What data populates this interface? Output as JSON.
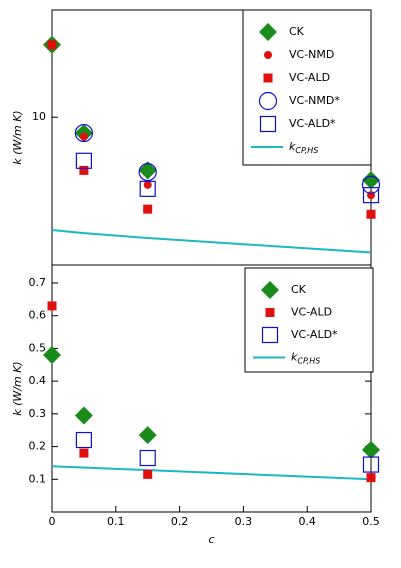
{
  "chart_data": [
    {
      "type": "scatter",
      "ylabel": "k (W/m K)",
      "ylog": true,
      "xlim": [
        0,
        0.5
      ],
      "ylim": [
        2.2,
        30
      ],
      "yticks": [
        10
      ],
      "legend": "upper right",
      "series": [
        {
          "name": "CK",
          "marker": "diamond",
          "color": "#1a8a1a",
          "x": [
            0,
            0.05,
            0.15,
            0.5
          ],
          "values": [
            21,
            8.5,
            5.8,
            5.25
          ]
        },
        {
          "name": "VC-NMD",
          "marker": "dot",
          "color": "#e01010",
          "x": [
            0,
            0.05,
            0.15,
            0.5
          ],
          "values": [
            21,
            8.2,
            5.0,
            4.5
          ]
        },
        {
          "name": "VC-ALD",
          "marker": "square",
          "color": "#e01010",
          "x": [
            0,
            0.05,
            0.15,
            0.5
          ],
          "values": [
            21,
            5.8,
            3.9,
            3.7
          ]
        },
        {
          "name": "VC-NMD*",
          "marker": "ring",
          "color": "#1010d0",
          "x": [
            0.05,
            0.15,
            0.5
          ],
          "values": [
            8.5,
            5.7,
            5.0
          ]
        },
        {
          "name": "VC-ALD*",
          "marker": "box",
          "color": "#1010d0",
          "x": [
            0.05,
            0.15,
            0.5
          ],
          "values": [
            6.4,
            4.8,
            4.5
          ]
        },
        {
          "name": "k",
          "subscript": "CP,HS",
          "marker": "line",
          "color": "#1bb8c0",
          "x": [
            0,
            0.05,
            0.15,
            0.5
          ],
          "values": [
            3.15,
            3.05,
            2.9,
            2.5
          ]
        }
      ]
    },
    {
      "type": "scatter",
      "ylabel": "k (W/m K)",
      "xlabel": "c",
      "xlim": [
        0,
        0.5
      ],
      "xticks": [
        0,
        0.1,
        0.2,
        0.3,
        0.4,
        0.5
      ],
      "ylim": [
        0,
        0.755
      ],
      "yticks": [
        0.1,
        0.2,
        0.3,
        0.4,
        0.5,
        0.6,
        0.7
      ],
      "legend": "upper right",
      "series": [
        {
          "name": "CK",
          "marker": "diamond",
          "color": "#1a8a1a",
          "x": [
            0,
            0.05,
            0.15,
            0.5
          ],
          "values": [
            0.48,
            0.295,
            0.235,
            0.19
          ]
        },
        {
          "name": "VC-ALD",
          "marker": "square",
          "color": "#e01010",
          "x": [
            0,
            0.05,
            0.15,
            0.5
          ],
          "values": [
            0.63,
            0.18,
            0.115,
            0.105
          ]
        },
        {
          "name": "VC-ALD*",
          "marker": "box",
          "color": "#1010d0",
          "x": [
            0.05,
            0.15,
            0.5
          ],
          "values": [
            0.22,
            0.165,
            0.145
          ]
        },
        {
          "name": "k",
          "subscript": "CP,HS",
          "marker": "line",
          "color": "#1bb8c0",
          "x": [
            0,
            0.5
          ],
          "values": [
            0.14,
            0.1
          ]
        }
      ]
    }
  ]
}
